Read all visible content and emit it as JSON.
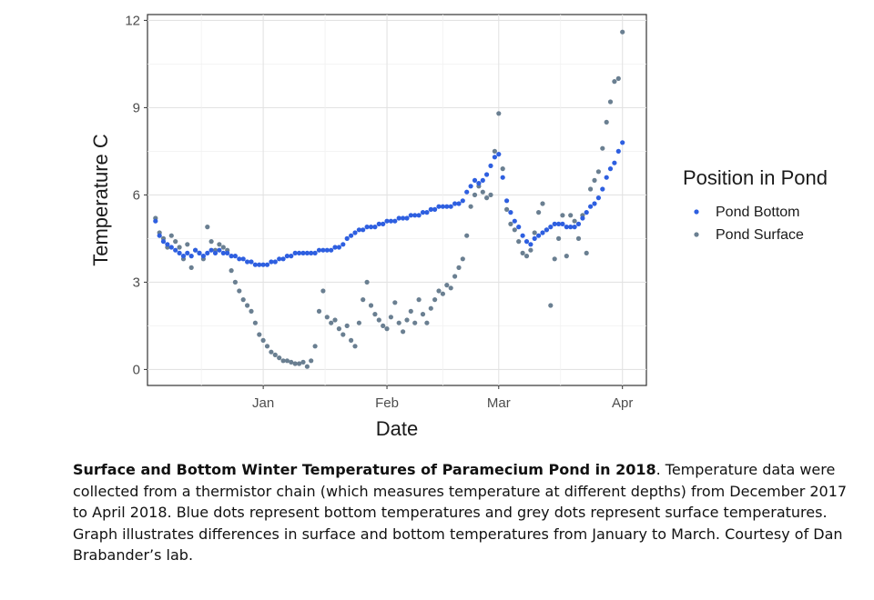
{
  "chart_data": {
    "type": "scatter",
    "xlabel": "Date",
    "ylabel": "Temperature C",
    "x_ticks": [
      {
        "date": "2018-01-01",
        "label": "Jan"
      },
      {
        "date": "2018-02-01",
        "label": "Feb"
      },
      {
        "date": "2018-03-01",
        "label": "Mar"
      },
      {
        "date": "2018-04-01",
        "label": "Apr"
      }
    ],
    "xlim": [
      "2017-12-03",
      "2018-04-07"
    ],
    "y_ticks": [
      0,
      3,
      6,
      9,
      12
    ],
    "ylim": [
      -0.55,
      12.2
    ],
    "grid": true,
    "legend": {
      "title": "Position in Pond",
      "placement": "right"
    },
    "series": [
      {
        "name": "Pond Bottom",
        "color": "#2e5fe0",
        "points": [
          [
            "2017-12-05",
            5.1
          ],
          [
            "2017-12-06",
            4.6
          ],
          [
            "2017-12-07",
            4.4
          ],
          [
            "2017-12-08",
            4.3
          ],
          [
            "2017-12-09",
            4.2
          ],
          [
            "2017-12-10",
            4.1
          ],
          [
            "2017-12-11",
            4.0
          ],
          [
            "2017-12-12",
            3.9
          ],
          [
            "2017-12-13",
            4.0
          ],
          [
            "2017-12-14",
            3.9
          ],
          [
            "2017-12-15",
            4.1
          ],
          [
            "2017-12-16",
            4.0
          ],
          [
            "2017-12-17",
            3.9
          ],
          [
            "2017-12-18",
            4.0
          ],
          [
            "2017-12-19",
            4.1
          ],
          [
            "2017-12-20",
            4.0
          ],
          [
            "2017-12-21",
            4.1
          ],
          [
            "2017-12-22",
            4.0
          ],
          [
            "2017-12-23",
            4.0
          ],
          [
            "2017-12-24",
            3.9
          ],
          [
            "2017-12-25",
            3.9
          ],
          [
            "2017-12-26",
            3.8
          ],
          [
            "2017-12-27",
            3.8
          ],
          [
            "2017-12-28",
            3.7
          ],
          [
            "2017-12-29",
            3.7
          ],
          [
            "2017-12-30",
            3.6
          ],
          [
            "2017-12-31",
            3.6
          ],
          [
            "2018-01-01",
            3.6
          ],
          [
            "2018-01-02",
            3.6
          ],
          [
            "2018-01-03",
            3.7
          ],
          [
            "2018-01-04",
            3.7
          ],
          [
            "2018-01-05",
            3.8
          ],
          [
            "2018-01-06",
            3.8
          ],
          [
            "2018-01-07",
            3.9
          ],
          [
            "2018-01-08",
            3.9
          ],
          [
            "2018-01-09",
            4.0
          ],
          [
            "2018-01-10",
            4.0
          ],
          [
            "2018-01-11",
            4.0
          ],
          [
            "2018-01-12",
            4.0
          ],
          [
            "2018-01-13",
            4.0
          ],
          [
            "2018-01-14",
            4.0
          ],
          [
            "2018-01-15",
            4.1
          ],
          [
            "2018-01-16",
            4.1
          ],
          [
            "2018-01-17",
            4.1
          ],
          [
            "2018-01-18",
            4.1
          ],
          [
            "2018-01-19",
            4.2
          ],
          [
            "2018-01-20",
            4.2
          ],
          [
            "2018-01-21",
            4.3
          ],
          [
            "2018-01-22",
            4.5
          ],
          [
            "2018-01-23",
            4.6
          ],
          [
            "2018-01-24",
            4.7
          ],
          [
            "2018-01-25",
            4.8
          ],
          [
            "2018-01-26",
            4.8
          ],
          [
            "2018-01-27",
            4.9
          ],
          [
            "2018-01-28",
            4.9
          ],
          [
            "2018-01-29",
            4.9
          ],
          [
            "2018-01-30",
            5.0
          ],
          [
            "2018-01-31",
            5.0
          ],
          [
            "2018-02-01",
            5.1
          ],
          [
            "2018-02-02",
            5.1
          ],
          [
            "2018-02-03",
            5.1
          ],
          [
            "2018-02-04",
            5.2
          ],
          [
            "2018-02-05",
            5.2
          ],
          [
            "2018-02-06",
            5.2
          ],
          [
            "2018-02-07",
            5.3
          ],
          [
            "2018-02-08",
            5.3
          ],
          [
            "2018-02-09",
            5.3
          ],
          [
            "2018-02-10",
            5.4
          ],
          [
            "2018-02-11",
            5.4
          ],
          [
            "2018-02-12",
            5.5
          ],
          [
            "2018-02-13",
            5.5
          ],
          [
            "2018-02-14",
            5.6
          ],
          [
            "2018-02-15",
            5.6
          ],
          [
            "2018-02-16",
            5.6
          ],
          [
            "2018-02-17",
            5.6
          ],
          [
            "2018-02-18",
            5.7
          ],
          [
            "2018-02-19",
            5.7
          ],
          [
            "2018-02-20",
            5.8
          ],
          [
            "2018-02-21",
            6.1
          ],
          [
            "2018-02-22",
            6.3
          ],
          [
            "2018-02-23",
            6.5
          ],
          [
            "2018-02-24",
            6.4
          ],
          [
            "2018-02-25",
            6.5
          ],
          [
            "2018-02-26",
            6.7
          ],
          [
            "2018-02-27",
            7.0
          ],
          [
            "2018-02-28",
            7.3
          ],
          [
            "2018-03-01",
            7.4
          ],
          [
            "2018-03-02",
            6.6
          ],
          [
            "2018-03-03",
            5.8
          ],
          [
            "2018-03-04",
            5.4
          ],
          [
            "2018-03-05",
            5.1
          ],
          [
            "2018-03-06",
            4.9
          ],
          [
            "2018-03-07",
            4.6
          ],
          [
            "2018-03-08",
            4.4
          ],
          [
            "2018-03-09",
            4.3
          ],
          [
            "2018-03-10",
            4.5
          ],
          [
            "2018-03-11",
            4.6
          ],
          [
            "2018-03-12",
            4.7
          ],
          [
            "2018-03-13",
            4.8
          ],
          [
            "2018-03-14",
            4.9
          ],
          [
            "2018-03-15",
            5.0
          ],
          [
            "2018-03-16",
            5.0
          ],
          [
            "2018-03-17",
            5.0
          ],
          [
            "2018-03-18",
            4.9
          ],
          [
            "2018-03-19",
            4.9
          ],
          [
            "2018-03-20",
            4.9
          ],
          [
            "2018-03-21",
            5.0
          ],
          [
            "2018-03-22",
            5.2
          ],
          [
            "2018-03-23",
            5.4
          ],
          [
            "2018-03-24",
            5.6
          ],
          [
            "2018-03-25",
            5.7
          ],
          [
            "2018-03-26",
            5.9
          ],
          [
            "2018-03-27",
            6.2
          ],
          [
            "2018-03-28",
            6.6
          ],
          [
            "2018-03-29",
            6.9
          ],
          [
            "2018-03-30",
            7.1
          ],
          [
            "2018-03-31",
            7.5
          ],
          [
            "2018-04-01",
            7.8
          ]
        ]
      },
      {
        "name": "Pond Surface",
        "color": "#6a7f91",
        "points": [
          [
            "2017-12-05",
            5.2
          ],
          [
            "2017-12-06",
            4.7
          ],
          [
            "2017-12-07",
            4.5
          ],
          [
            "2017-12-08",
            4.2
          ],
          [
            "2017-12-09",
            4.6
          ],
          [
            "2017-12-10",
            4.4
          ],
          [
            "2017-12-11",
            4.2
          ],
          [
            "2017-12-12",
            3.8
          ],
          [
            "2017-12-13",
            4.3
          ],
          [
            "2017-12-14",
            3.5
          ],
          [
            "2017-12-15",
            4.1
          ],
          [
            "2017-12-16",
            4.0
          ],
          [
            "2017-12-17",
            3.8
          ],
          [
            "2017-12-18",
            4.9
          ],
          [
            "2017-12-19",
            4.4
          ],
          [
            "2017-12-20",
            4.1
          ],
          [
            "2017-12-21",
            4.3
          ],
          [
            "2017-12-22",
            4.2
          ],
          [
            "2017-12-23",
            4.1
          ],
          [
            "2017-12-24",
            3.4
          ],
          [
            "2017-12-25",
            3.0
          ],
          [
            "2017-12-26",
            2.7
          ],
          [
            "2017-12-27",
            2.4
          ],
          [
            "2017-12-28",
            2.2
          ],
          [
            "2017-12-29",
            2.0
          ],
          [
            "2017-12-30",
            1.6
          ],
          [
            "2017-12-31",
            1.2
          ],
          [
            "2018-01-01",
            1.0
          ],
          [
            "2018-01-02",
            0.8
          ],
          [
            "2018-01-03",
            0.6
          ],
          [
            "2018-01-04",
            0.5
          ],
          [
            "2018-01-05",
            0.4
          ],
          [
            "2018-01-06",
            0.3
          ],
          [
            "2018-01-07",
            0.3
          ],
          [
            "2018-01-08",
            0.25
          ],
          [
            "2018-01-09",
            0.2
          ],
          [
            "2018-01-10",
            0.2
          ],
          [
            "2018-01-11",
            0.25
          ],
          [
            "2018-01-12",
            0.1
          ],
          [
            "2018-01-13",
            0.3
          ],
          [
            "2018-01-14",
            0.8
          ],
          [
            "2018-01-15",
            2.0
          ],
          [
            "2018-01-16",
            2.7
          ],
          [
            "2018-01-17",
            1.8
          ],
          [
            "2018-01-18",
            1.6
          ],
          [
            "2018-01-19",
            1.7
          ],
          [
            "2018-01-20",
            1.4
          ],
          [
            "2018-01-21",
            1.2
          ],
          [
            "2018-01-22",
            1.5
          ],
          [
            "2018-01-23",
            1.0
          ],
          [
            "2018-01-24",
            0.8
          ],
          [
            "2018-01-25",
            1.6
          ],
          [
            "2018-01-26",
            2.4
          ],
          [
            "2018-01-27",
            3.0
          ],
          [
            "2018-01-28",
            2.2
          ],
          [
            "2018-01-29",
            1.9
          ],
          [
            "2018-01-30",
            1.7
          ],
          [
            "2018-01-31",
            1.5
          ],
          [
            "2018-02-01",
            1.4
          ],
          [
            "2018-02-02",
            1.8
          ],
          [
            "2018-02-03",
            2.3
          ],
          [
            "2018-02-04",
            1.6
          ],
          [
            "2018-02-05",
            1.3
          ],
          [
            "2018-02-06",
            1.7
          ],
          [
            "2018-02-07",
            2.0
          ],
          [
            "2018-02-08",
            1.6
          ],
          [
            "2018-02-09",
            2.4
          ],
          [
            "2018-02-10",
            1.9
          ],
          [
            "2018-02-11",
            1.6
          ],
          [
            "2018-02-12",
            2.1
          ],
          [
            "2018-02-13",
            2.4
          ],
          [
            "2018-02-14",
            2.7
          ],
          [
            "2018-02-15",
            2.6
          ],
          [
            "2018-02-16",
            2.9
          ],
          [
            "2018-02-17",
            2.8
          ],
          [
            "2018-02-18",
            3.2
          ],
          [
            "2018-02-19",
            3.5
          ],
          [
            "2018-02-20",
            3.8
          ],
          [
            "2018-02-21",
            4.6
          ],
          [
            "2018-02-22",
            5.6
          ],
          [
            "2018-02-23",
            6.0
          ],
          [
            "2018-02-24",
            6.3
          ],
          [
            "2018-02-25",
            6.1
          ],
          [
            "2018-02-26",
            5.9
          ],
          [
            "2018-02-27",
            6.0
          ],
          [
            "2018-02-28",
            7.5
          ],
          [
            "2018-03-01",
            8.8
          ],
          [
            "2018-03-02",
            6.9
          ],
          [
            "2018-03-03",
            5.5
          ],
          [
            "2018-03-04",
            5.0
          ],
          [
            "2018-03-05",
            4.8
          ],
          [
            "2018-03-06",
            4.4
          ],
          [
            "2018-03-07",
            4.0
          ],
          [
            "2018-03-08",
            3.9
          ],
          [
            "2018-03-09",
            4.1
          ],
          [
            "2018-03-10",
            4.7
          ],
          [
            "2018-03-11",
            5.4
          ],
          [
            "2018-03-12",
            5.7
          ],
          [
            "2018-03-13",
            4.8
          ],
          [
            "2018-03-14",
            2.2
          ],
          [
            "2018-03-15",
            3.8
          ],
          [
            "2018-03-16",
            4.5
          ],
          [
            "2018-03-17",
            5.3
          ],
          [
            "2018-03-18",
            3.9
          ],
          [
            "2018-03-19",
            5.3
          ],
          [
            "2018-03-20",
            5.1
          ],
          [
            "2018-03-21",
            4.5
          ],
          [
            "2018-03-22",
            5.3
          ],
          [
            "2018-03-23",
            4.0
          ],
          [
            "2018-03-24",
            6.2
          ],
          [
            "2018-03-25",
            6.5
          ],
          [
            "2018-03-26",
            6.8
          ],
          [
            "2018-03-27",
            7.6
          ],
          [
            "2018-03-28",
            8.5
          ],
          [
            "2018-03-29",
            9.2
          ],
          [
            "2018-03-30",
            9.9
          ],
          [
            "2018-03-31",
            10.0
          ],
          [
            "2018-04-01",
            11.6
          ]
        ]
      }
    ]
  },
  "caption": {
    "bold": "Surface and Bottom Winter Temperatures of Paramecium Pond in 2018",
    "text": ". Temperature data were collected from a thermistor chain (which measures temperature at different depths) from December 2017 to April 2018. Blue dots represent bottom temperatures and grey dots represent surface temperatures. Graph illustrates differences in surface and bottom temperatures from January to March. Courtesy of Dan Brabander’s lab."
  }
}
